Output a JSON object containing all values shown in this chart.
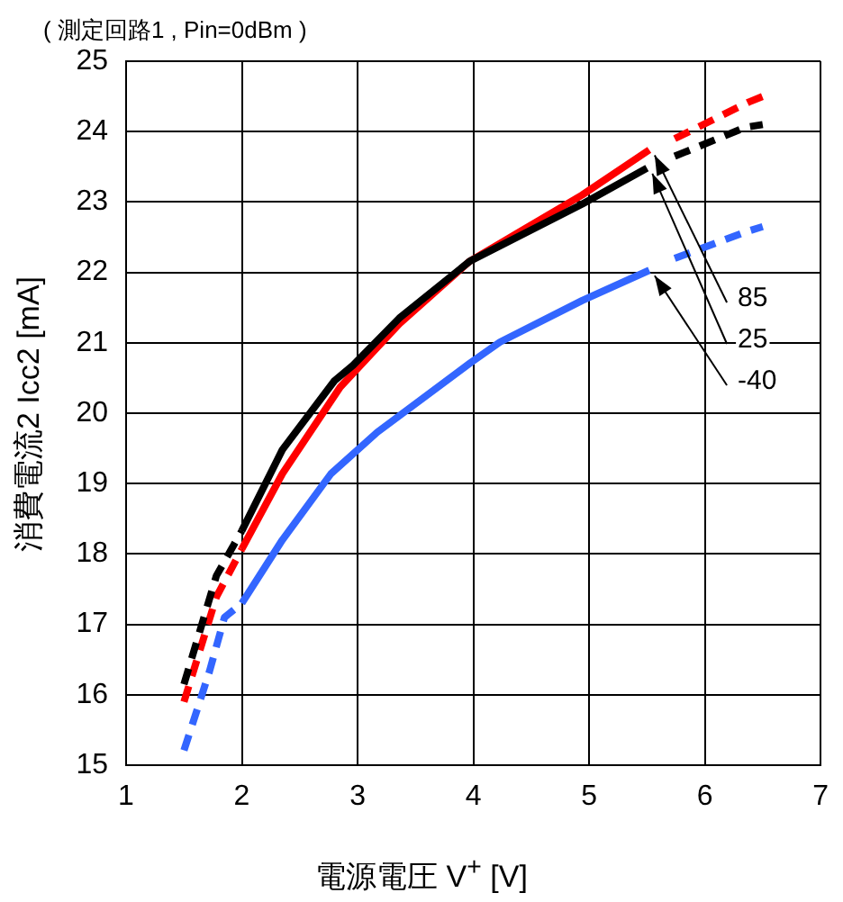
{
  "chart_data": {
    "type": "line",
    "title": "( 測定回路1 , Pin=0dBm )",
    "xlabel": "電源電圧 V$^{+}$ [V]",
    "ylabel": "消費電流2 Icc2 [mA]",
    "xlim": [
      1,
      7
    ],
    "xticks": [
      1,
      2,
      3,
      4,
      5,
      6,
      7
    ],
    "ylim": [
      15,
      25
    ],
    "yticks": [
      15,
      16,
      17,
      18,
      19,
      20,
      21,
      22,
      23,
      24,
      25
    ],
    "grid": true,
    "legend": false,
    "marker": "none",
    "series": [
      {
        "color": "#000000",
        "line_style": "dashed",
        "x": [
          1.5,
          1.78,
          2.0
        ],
        "values": [
          16.15,
          17.69,
          18.33
        ]
      },
      {
        "name": "25",
        "color": "#000000",
        "line_style": "solid",
        "x": [
          2.0,
          2.35,
          2.8,
          2.96,
          3.36,
          3.97,
          4.94,
          5.5
        ],
        "values": [
          18.33,
          19.48,
          20.46,
          20.68,
          21.35,
          22.16,
          22.97,
          23.48
        ]
      },
      {
        "color": "#000000",
        "line_style": "dashed",
        "x": [
          5.74,
          6.35,
          6.5
        ],
        "values": [
          23.65,
          24.06,
          24.1
        ]
      },
      {
        "color": "#ff0000",
        "line_style": "dashed",
        "x": [
          1.5,
          1.78,
          2.0
        ],
        "values": [
          15.9,
          17.39,
          18.07
        ]
      },
      {
        "name": "85",
        "color": "#ff0000",
        "line_style": "solid",
        "x": [
          2.0,
          2.35,
          2.85,
          3.36,
          3.97,
          4.94,
          5.52
        ],
        "values": [
          18.07,
          19.14,
          20.37,
          21.27,
          22.16,
          23.1,
          23.74
        ]
      },
      {
        "color": "#ff0000",
        "line_style": "dashed",
        "x": [
          5.74,
          6.38,
          6.5
        ],
        "values": [
          23.9,
          24.42,
          24.5
        ]
      },
      {
        "color": "#3366ff",
        "line_style": "dashed",
        "x": [
          1.5,
          1.72,
          1.85,
          2.0
        ],
        "values": [
          15.21,
          16.33,
          17.1,
          17.3
        ]
      },
      {
        "name": "-40",
        "color": "#3366ff",
        "line_style": "solid",
        "x": [
          2.0,
          2.35,
          2.77,
          3.17,
          3.97,
          4.23,
          4.94,
          5.52
        ],
        "values": [
          17.3,
          18.2,
          19.14,
          19.73,
          20.71,
          21.01,
          21.6,
          22.03
        ]
      },
      {
        "color": "#3366ff",
        "line_style": "dashed",
        "x": [
          5.74,
          6.38,
          6.5
        ],
        "values": [
          22.2,
          22.59,
          22.65
        ]
      }
    ]
  }
}
